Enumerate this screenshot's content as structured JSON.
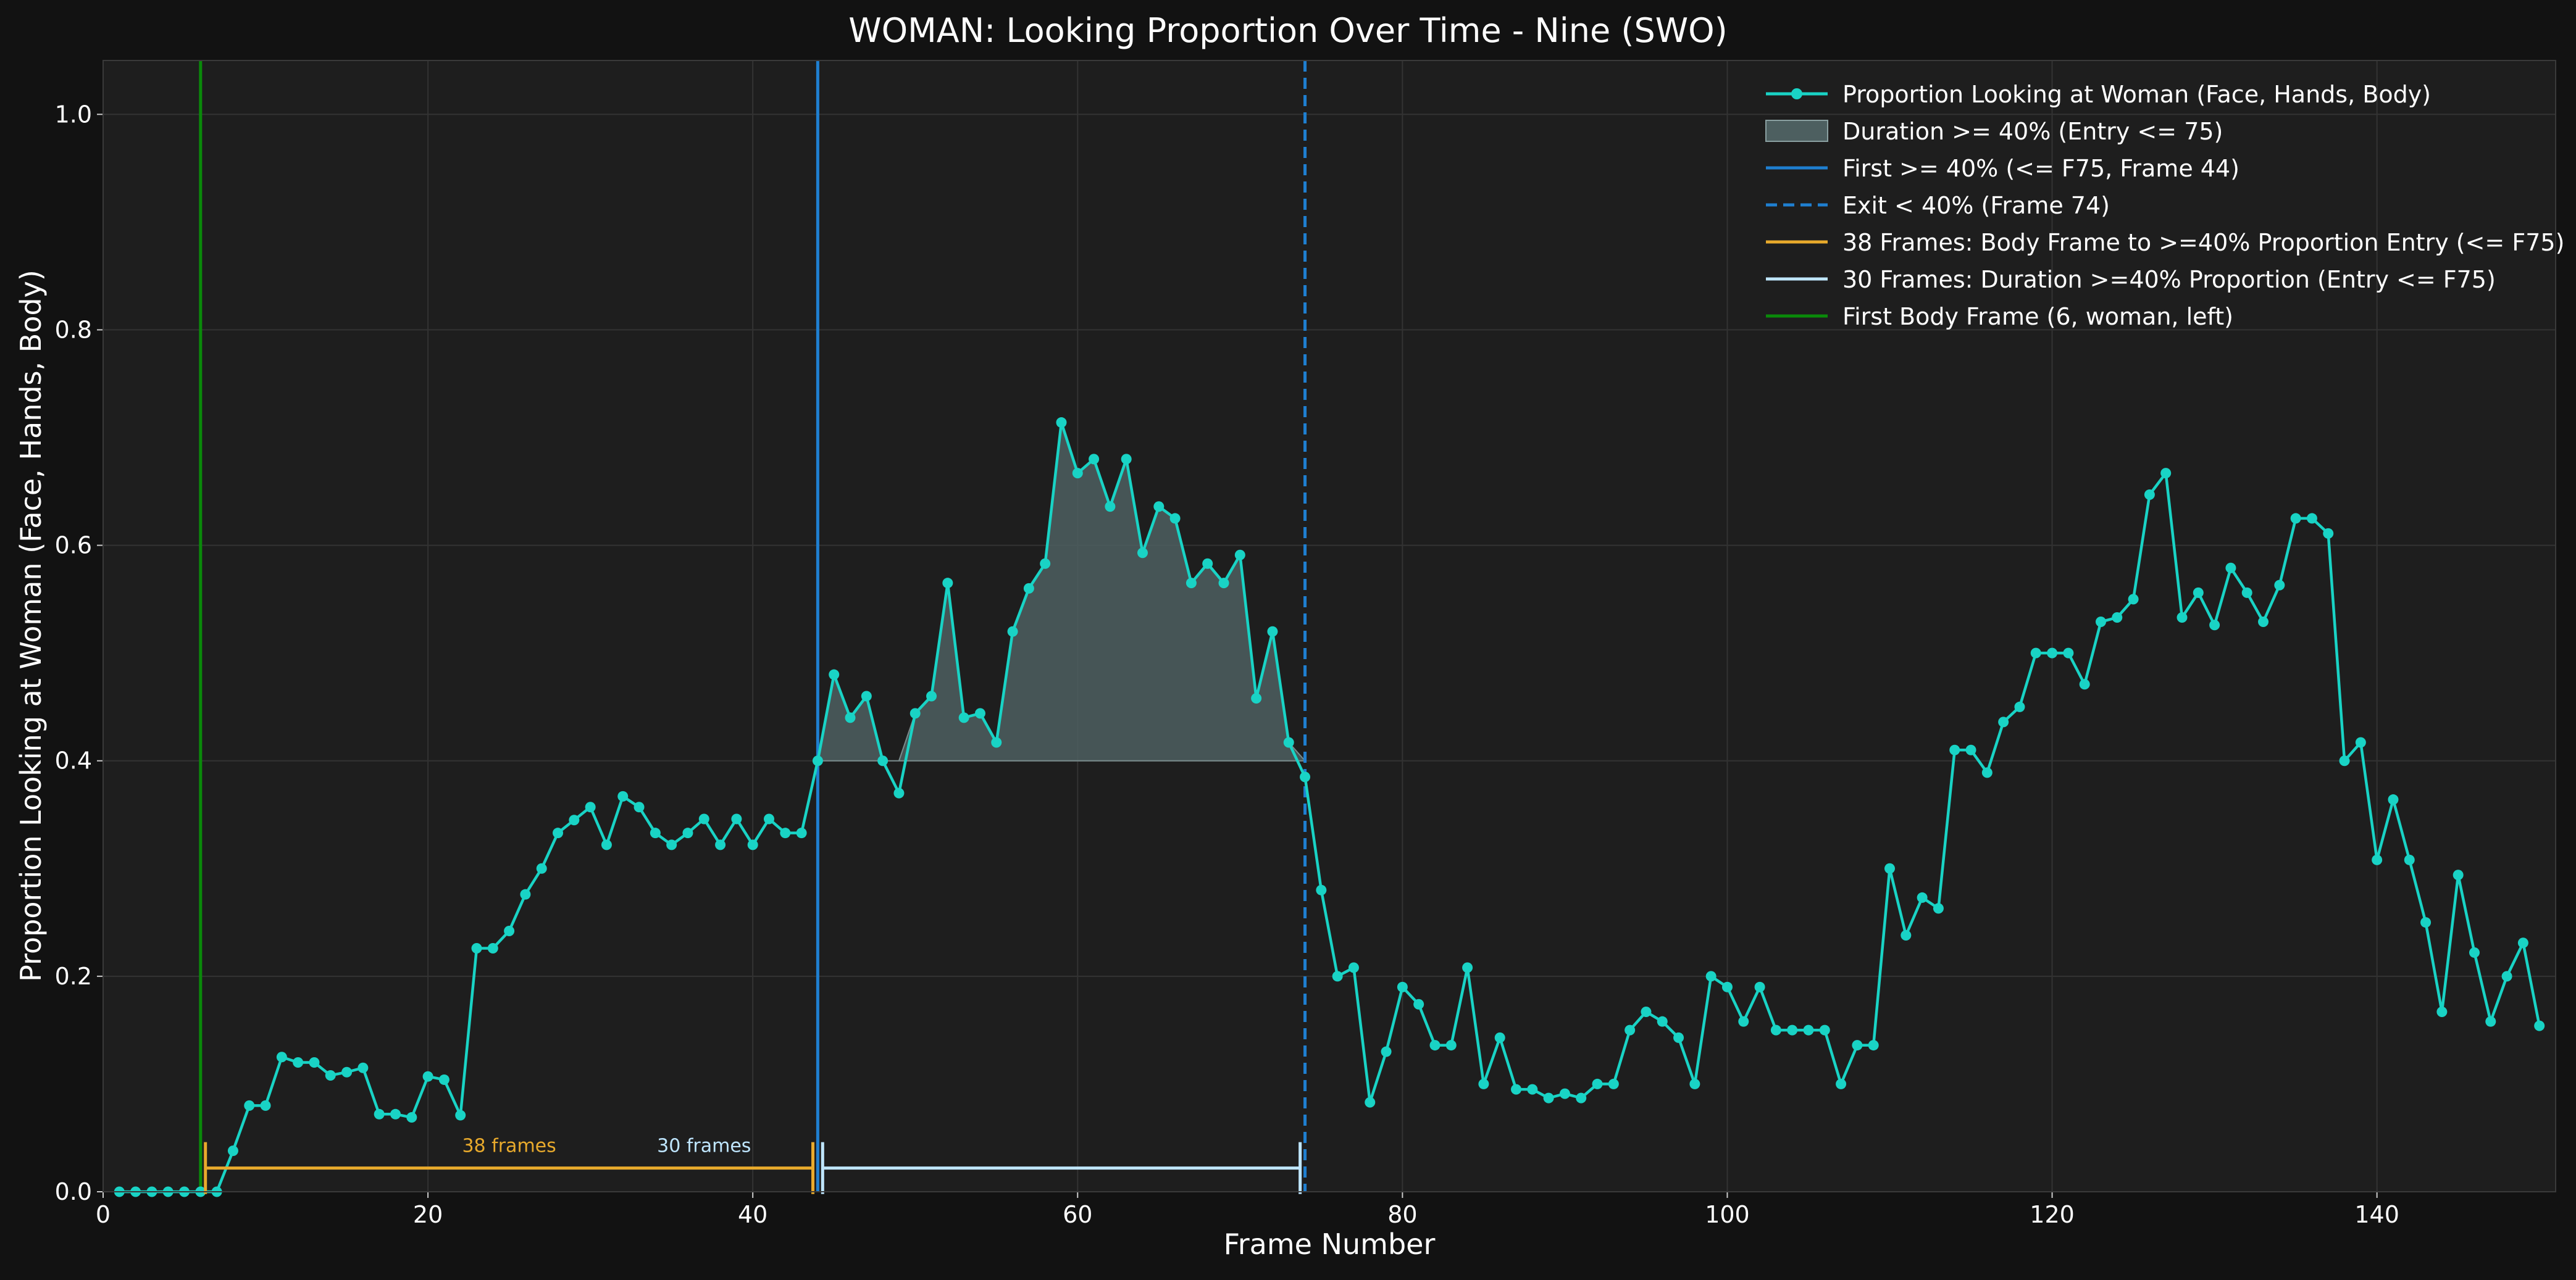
{
  "chart_data": {
    "type": "line",
    "title": "WOMAN: Looking Proportion Over Time - Nine (SWO)",
    "xlabel": "Frame Number",
    "ylabel": "Proportion Looking at Woman (Face, Hands, Body)",
    "xlim": [
      0,
      151
    ],
    "ylim": [
      0,
      1.05
    ],
    "x_ticks": [
      0,
      20,
      40,
      60,
      80,
      100,
      120,
      140
    ],
    "y_ticks": [
      0.0,
      0.2,
      0.4,
      0.6,
      0.8,
      1.0
    ],
    "x_tick_labels": [
      "0",
      "20",
      "40",
      "60",
      "80",
      "100",
      "120",
      "140"
    ],
    "y_tick_labels": [
      "0.0",
      "0.2",
      "0.4",
      "0.6",
      "0.8",
      "1.0"
    ],
    "grid": true,
    "legend_position": "top-right",
    "legend": [
      {
        "label": "Proportion Looking at Woman (Face, Hands, Body)",
        "style": "line-marker",
        "color": "#19d3c5"
      },
      {
        "label": "Duration >= 40% (Entry <= 75)",
        "style": "patch",
        "color": "#4d5f60"
      },
      {
        "label": "First >= 40% (<= F75, Frame 44)",
        "style": "solid",
        "color": "#1f7fd0"
      },
      {
        "label": "Exit < 40% (Frame 74)",
        "style": "dashed",
        "color": "#1f7fd0"
      },
      {
        "label": "38 Frames: Body Frame to >=40% Proportion Entry (<= F75)",
        "style": "solid",
        "color": "#e8aa2c"
      },
      {
        "label": "30 Frames: Duration >=40% Proportion (Entry <= F75)",
        "style": "solid",
        "color": "#bfe6ff"
      },
      {
        "label": "First Body Frame (6, woman, left)",
        "style": "solid",
        "color": "#0a8a0a"
      }
    ],
    "series": [
      {
        "name": "Proportion Looking at Woman (Face, Hands, Body)",
        "color": "#19d3c5",
        "x_start": 1,
        "values": [
          0.0,
          0.0,
          0.0,
          0.0,
          0.0,
          0.0,
          0.0,
          0.038,
          0.08,
          0.08,
          0.125,
          0.12,
          0.12,
          0.108,
          0.111,
          0.115,
          0.072,
          0.072,
          0.069,
          0.107,
          0.104,
          0.071,
          0.226,
          0.226,
          0.242,
          0.276,
          0.3,
          0.333,
          0.345,
          0.357,
          0.322,
          0.367,
          0.357,
          0.333,
          0.322,
          0.333,
          0.346,
          0.322,
          0.346,
          0.322,
          0.346,
          0.333,
          0.333,
          0.4,
          0.48,
          0.44,
          0.46,
          0.4,
          0.37,
          0.444,
          0.46,
          0.565,
          0.44,
          0.444,
          0.417,
          0.52,
          0.56,
          0.583,
          0.714,
          0.667,
          0.68,
          0.636,
          0.68,
          0.593,
          0.636,
          0.625,
          0.565,
          0.583,
          0.565,
          0.591,
          0.458,
          0.52,
          0.417,
          0.385,
          0.28,
          0.2,
          0.208,
          0.083,
          0.13,
          0.19,
          0.174,
          0.136,
          0.136,
          0.208,
          0.1,
          0.143,
          0.095,
          0.095,
          0.087,
          0.091,
          0.087,
          0.1,
          0.1,
          0.15,
          0.167,
          0.158,
          0.143,
          0.1,
          0.2,
          0.19,
          0.158,
          0.19,
          0.15,
          0.15,
          0.15,
          0.15,
          0.1,
          0.136,
          0.136,
          0.3,
          0.238,
          0.273,
          0.263,
          0.41,
          0.41,
          0.389,
          0.436,
          0.45,
          0.5,
          0.5,
          0.5,
          0.471,
          0.529,
          0.533,
          0.55,
          0.647,
          0.667,
          0.533,
          0.556,
          0.526,
          0.579,
          0.556,
          0.529,
          0.563,
          0.625,
          0.625,
          0.611,
          0.4,
          0.417,
          0.308,
          0.364,
          0.308,
          0.25,
          0.167,
          0.294,
          0.222,
          0.158,
          0.2,
          0.231,
          0.154
        ]
      }
    ],
    "threshold": 0.4,
    "fill_region": {
      "from_frame": 44,
      "to_frame": 74,
      "color": "#4d5f60"
    },
    "vertical_lines": [
      {
        "x": 6,
        "color": "#0a8a0a",
        "style": "solid"
      },
      {
        "x": 44,
        "color": "#1f7fd0",
        "style": "solid"
      },
      {
        "x": 74,
        "color": "#1f7fd0",
        "style": "dashed"
      }
    ],
    "spans": [
      {
        "from": 6.3,
        "to": 43.7,
        "y": 0.022,
        "color": "#e8aa2c",
        "label": "38 frames",
        "label_x": 25
      },
      {
        "from": 44.3,
        "to": 73.7,
        "y": 0.022,
        "color": "#bfe6ff",
        "label": "30 frames",
        "label_x": 37
      }
    ]
  }
}
